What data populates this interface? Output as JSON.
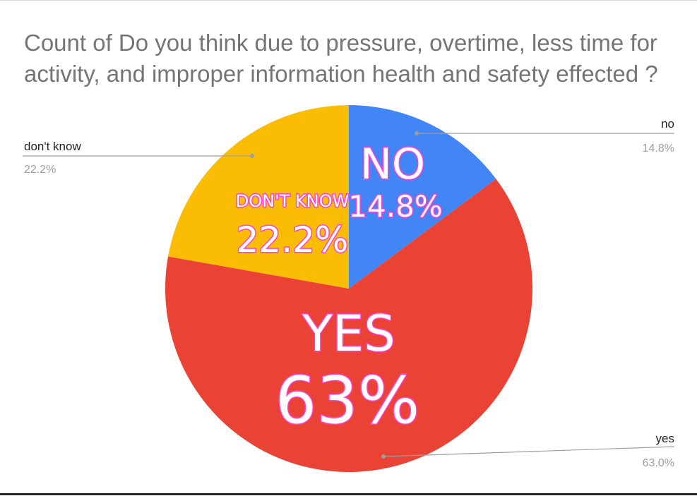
{
  "chart_data": {
    "type": "pie",
    "title": "Count of Do you think due to pressure, overtime, less time for activity, and improper information  health and safety effected ?",
    "slices": [
      {
        "label": "no",
        "value": 14.8,
        "pct_label": "14.8%",
        "inner_label": "NO",
        "inner_pct": "14.8%",
        "color": "#4285f4"
      },
      {
        "label": "yes",
        "value": 63.0,
        "pct_label": "63.0%",
        "inner_label": "YES",
        "inner_pct": "63%",
        "color": "#ea4335"
      },
      {
        "label": "don't know",
        "value": 22.2,
        "pct_label": "22.2%",
        "inner_label": "DON'T KNOW",
        "inner_pct": "22.2%",
        "color": "#fbbc04"
      }
    ],
    "start_angle_deg": 0,
    "direction": "clockwise",
    "legend": "none"
  }
}
